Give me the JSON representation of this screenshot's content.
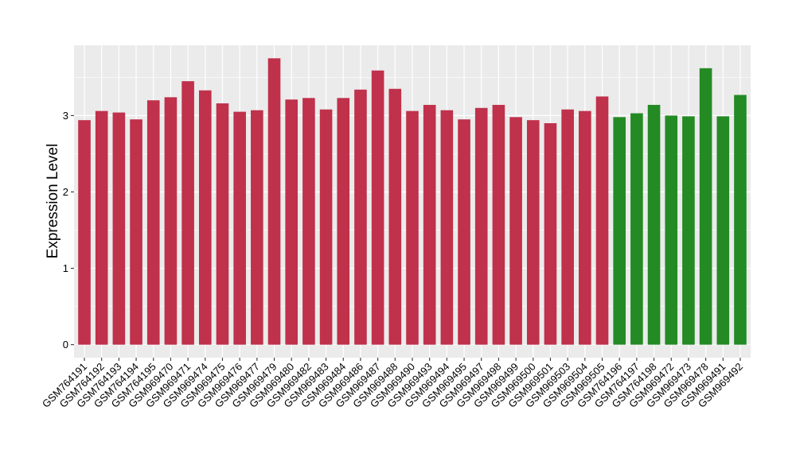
{
  "chart_data": {
    "type": "bar",
    "title": "",
    "xlabel": "",
    "ylabel": "Expression Level",
    "ylim": [
      -0.17,
      3.92
    ],
    "yticks": [
      0,
      1,
      2,
      3
    ],
    "grid": true,
    "legend": "none",
    "colors": {
      "group_a": "#C0314B",
      "group_b": "#248A24",
      "panel_bg": "#EBEBEB",
      "grid": "#FFFFFF"
    },
    "categories": [
      "GSM764191",
      "GSM764192",
      "GSM764193",
      "GSM764194",
      "GSM764195",
      "GSM969470",
      "GSM969471",
      "GSM969474",
      "GSM969475",
      "GSM969476",
      "GSM969477",
      "GSM969479",
      "GSM969480",
      "GSM969482",
      "GSM969483",
      "GSM969484",
      "GSM969486",
      "GSM969487",
      "GSM969488",
      "GSM969490",
      "GSM969493",
      "GSM969494",
      "GSM969495",
      "GSM969497",
      "GSM969498",
      "GSM969499",
      "GSM969500",
      "GSM969501",
      "GSM969503",
      "GSM969504",
      "GSM969505",
      "GSM764196",
      "GSM764197",
      "GSM764198",
      "GSM969472",
      "GSM969473",
      "GSM969478",
      "GSM969491",
      "GSM969492"
    ],
    "values": [
      2.94,
      3.06,
      3.04,
      2.95,
      3.2,
      3.24,
      3.45,
      3.33,
      3.16,
      3.05,
      3.07,
      3.75,
      3.21,
      3.23,
      3.08,
      3.23,
      3.34,
      3.59,
      3.35,
      3.06,
      3.14,
      3.07,
      2.95,
      3.1,
      3.14,
      2.98,
      2.94,
      2.9,
      3.08,
      3.06,
      3.25,
      2.98,
      3.03,
      3.14,
      3.0,
      2.99,
      3.62,
      2.99,
      3.27
    ],
    "groups": [
      "a",
      "a",
      "a",
      "a",
      "a",
      "a",
      "a",
      "a",
      "a",
      "a",
      "a",
      "a",
      "a",
      "a",
      "a",
      "a",
      "a",
      "a",
      "a",
      "a",
      "a",
      "a",
      "a",
      "a",
      "a",
      "a",
      "a",
      "a",
      "a",
      "a",
      "a",
      "b",
      "b",
      "b",
      "b",
      "b",
      "b",
      "b",
      "b"
    ]
  }
}
